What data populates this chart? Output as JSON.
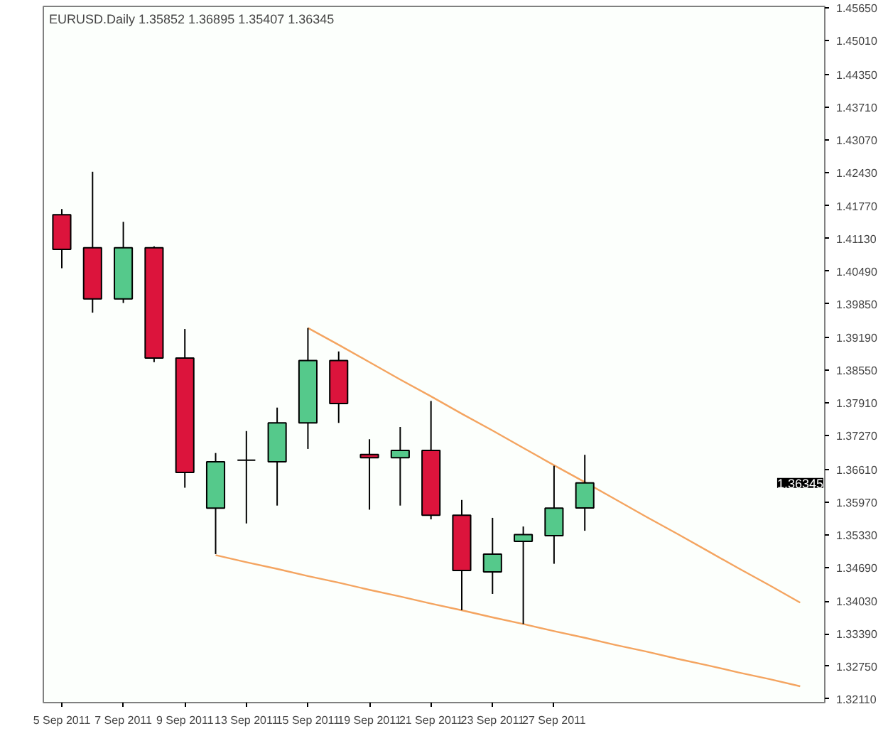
{
  "chart_data": {
    "type": "candlestick",
    "title": "EURUSD.Daily  1.35852 1.36895 1.35407 1.36345",
    "categories": [
      "5 Sep 2011",
      null,
      "7 Sep 2011",
      null,
      "9 Sep 2011",
      null,
      "13 Sep 2011",
      null,
      "15 Sep 2011",
      null,
      "19 Sep 2011",
      null,
      "21 Sep 2011",
      null,
      "23 Sep 2011",
      null,
      "27 Sep 2011",
      null,
      null,
      null,
      null,
      null,
      null,
      null,
      null
    ],
    "ohlc": [
      [
        1.416,
        1.4171,
        1.4055,
        1.4092
      ],
      [
        1.4095,
        1.4244,
        1.3968,
        1.3995
      ],
      [
        1.3995,
        1.4146,
        1.3987,
        1.4095
      ],
      [
        1.4095,
        1.4098,
        1.3871,
        1.3879
      ],
      [
        1.3879,
        1.3936,
        1.3625,
        1.3655
      ],
      [
        1.3585,
        1.3693,
        1.3495,
        1.3676
      ],
      [
        1.3679,
        1.3736,
        1.3555,
        1.3679
      ],
      [
        1.3676,
        1.3782,
        1.359,
        1.3752
      ],
      [
        1.3752,
        1.3938,
        1.3701,
        1.3874
      ],
      [
        1.3874,
        1.3892,
        1.3752,
        1.379
      ],
      [
        1.369,
        1.372,
        1.3582,
        1.3684
      ],
      [
        1.3684,
        1.3744,
        1.359,
        1.3698
      ],
      [
        1.3698,
        1.3795,
        1.3563,
        1.3571
      ],
      [
        1.3571,
        1.3601,
        1.3385,
        1.3463
      ],
      [
        1.346,
        1.3566,
        1.3417,
        1.3495
      ],
      [
        1.352,
        1.3549,
        1.3358,
        1.3533
      ],
      [
        1.3531,
        1.3668,
        1.3476,
        1.3585
      ],
      [
        1.35852,
        1.36895,
        1.35407,
        1.36345
      ],
      null,
      null,
      null,
      null,
      null,
      null,
      null
    ],
    "colors": [
      "#dc143c",
      "#dc143c",
      "#55c98b",
      "#dc143c",
      "#dc143c",
      "#55c98b",
      "#000000",
      "#55c98b",
      "#55c98b",
      "#dc143c",
      "#dc143c",
      "#55c98b",
      "#dc143c",
      "#dc143c",
      "#55c98b",
      "#55c98b",
      "#55c98b",
      "#55c98b",
      null,
      null,
      null,
      null,
      null,
      null,
      null
    ],
    "series": [
      {
        "type": "line",
        "color": "#f4a460",
        "values": [
          null,
          null,
          null,
          null,
          null,
          null,
          null,
          null,
          1.3938,
          1.3905,
          1.3871,
          1.3837,
          1.3804,
          1.377,
          1.3737,
          1.3703,
          1.3669,
          1.3636,
          1.3602,
          1.3568,
          1.3535,
          1.3501,
          1.3467,
          1.3434,
          1.34
        ]
      },
      {
        "type": "line",
        "color": "#f4a460",
        "values": [
          null,
          null,
          null,
          null,
          null,
          1.3493,
          1.3479,
          1.3466,
          1.3452,
          1.3439,
          1.3425,
          1.3412,
          1.3398,
          1.3385,
          1.3371,
          1.3358,
          1.3344,
          1.3331,
          1.3317,
          1.3304,
          1.329,
          1.3277,
          1.3263,
          1.325,
          1.3236
        ]
      }
    ],
    "annotations": [
      "1.36345"
    ],
    "ylim": [
      1.3204,
      1.4568
    ],
    "yticks": [
      {
        "value": 1.4565,
        "label": "1.45650"
      },
      {
        "value": 1.4501,
        "label": "1.45010"
      },
      {
        "value": 1.4435,
        "label": "1.44350"
      },
      {
        "value": 1.4371,
        "label": "1.43710"
      },
      {
        "value": 1.4307,
        "label": "1.43070"
      },
      {
        "value": 1.4243,
        "label": "1.42430"
      },
      {
        "value": 1.4177,
        "label": "1.41770"
      },
      {
        "value": 1.4113,
        "label": "1.41130"
      },
      {
        "value": 1.4049,
        "label": "1.40490"
      },
      {
        "value": 1.3985,
        "label": "1.39850"
      },
      {
        "value": 1.3919,
        "label": "1.39190"
      },
      {
        "value": 1.3855,
        "label": "1.38550"
      },
      {
        "value": 1.3791,
        "label": "1.37910"
      },
      {
        "value": 1.3727,
        "label": "1.37270"
      },
      {
        "value": 1.3661,
        "label": "1.36610"
      },
      {
        "value": 1.3597,
        "label": "1.35970"
      },
      {
        "value": 1.3533,
        "label": "1.35330"
      },
      {
        "value": 1.3469,
        "label": "1.34690"
      },
      {
        "value": 1.3403,
        "label": "1.34030"
      },
      {
        "value": 1.3339,
        "label": "1.33390"
      },
      {
        "value": 1.3275,
        "label": "1.32750"
      },
      {
        "value": 1.3211,
        "label": "1.32110"
      }
    ],
    "grid": false
  }
}
